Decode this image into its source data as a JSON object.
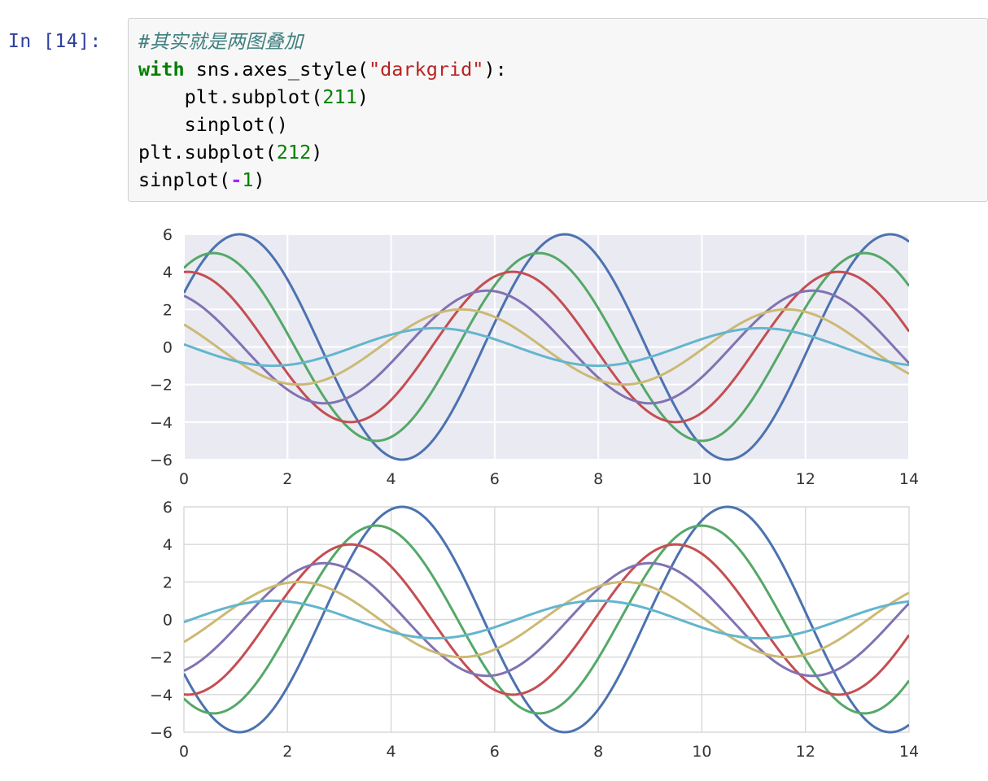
{
  "cell": {
    "prompt": "In [14]:",
    "code": {
      "line1": {
        "comment": "#其实就是两图叠加"
      },
      "line2": {
        "kw": "with",
        "a": " sns.axes_style(",
        "str": "\"darkgrid\"",
        "b": "):"
      },
      "line3": {
        "a": "    plt.subplot(",
        "num": "211",
        "b": ")"
      },
      "line4": {
        "a": "    sinplot()"
      },
      "line5": {
        "a": "plt.subplot(",
        "num": "212",
        "b": ")"
      },
      "line6": {
        "a": "sinplot(",
        "op": "-",
        "num": "1",
        "b": ")"
      }
    }
  },
  "chart_data": [
    {
      "type": "line",
      "style": "darkgrid",
      "xlim": [
        0,
        14
      ],
      "ylim": [
        -6,
        6
      ],
      "xticks": [
        "0",
        "2",
        "4",
        "6",
        "8",
        "10",
        "12",
        "14"
      ],
      "yticks": [
        "6",
        "4",
        "2",
        "0",
        "−2",
        "−4",
        "−6"
      ],
      "grid": true,
      "background": "#eaeaf2",
      "series": [
        {
          "formula": "sin(x + 0.5*1) * 6",
          "color": "#4c72b0"
        },
        {
          "formula": "sin(x + 0.5*2) * 5",
          "color": "#55a868"
        },
        {
          "formula": "sin(x + 0.5*3) * 4",
          "color": "#c44e52"
        },
        {
          "formula": "sin(x + 0.5*4) * 3",
          "color": "#8172b2"
        },
        {
          "formula": "sin(x + 0.5*5) * 2",
          "color": "#ccb974"
        },
        {
          "formula": "sin(x + 0.5*6) * 1",
          "color": "#64b5cd"
        }
      ]
    },
    {
      "type": "line",
      "style": "whitegrid",
      "xlim": [
        0,
        14
      ],
      "ylim": [
        -6,
        6
      ],
      "xticks": [
        "0",
        "2",
        "4",
        "6",
        "8",
        "10",
        "12",
        "14"
      ],
      "yticks": [
        "6",
        "4",
        "2",
        "0",
        "−2",
        "−4",
        "−6"
      ],
      "grid": true,
      "background": "#ffffff",
      "series": [
        {
          "formula": "sin(x + 0.5*1) * 6 * -1",
          "color": "#4c72b0"
        },
        {
          "formula": "sin(x + 0.5*2) * 5 * -1",
          "color": "#55a868"
        },
        {
          "formula": "sin(x + 0.5*3) * 4 * -1",
          "color": "#c44e52"
        },
        {
          "formula": "sin(x + 0.5*4) * 3 * -1",
          "color": "#8172b2"
        },
        {
          "formula": "sin(x + 0.5*5) * 2 * -1",
          "color": "#ccb974"
        },
        {
          "formula": "sin(x + 0.5*6) * 1 * -1",
          "color": "#64b5cd"
        }
      ]
    }
  ]
}
